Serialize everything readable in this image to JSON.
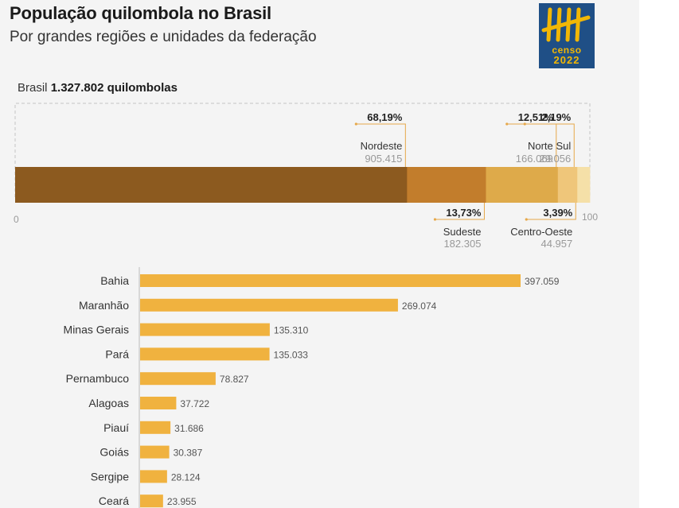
{
  "header": {
    "title": "População quilombola no Brasil",
    "subtitle": "Por grandes regiões e unidades da federação"
  },
  "logo": {
    "line1": "censo",
    "line2": "2022"
  },
  "total": {
    "prefix": "Brasil",
    "value": "1.327.802 quilombolas"
  },
  "colors": {
    "nordeste": "#8c5a1f",
    "sudeste": "#c27d2c",
    "norte": "#deaa4a",
    "centro_oeste": "#efc67a",
    "sul": "#f5e0a8",
    "states_bar": "#f0b23f",
    "leader": "#e6a84a"
  },
  "chart_data": [
    {
      "type": "bar",
      "orientation": "horizontal-stacked",
      "axis": {
        "min": 0,
        "max": 100,
        "min_label": "0",
        "max_label": "100"
      },
      "series": [
        {
          "name": "Nordeste",
          "percent": 68.19,
          "percent_label": "68,19%",
          "count_label": "905.415",
          "label_side": "top"
        },
        {
          "name": "Sudeste",
          "percent": 13.73,
          "percent_label": "13,73%",
          "count_label": "182.305",
          "label_side": "bottom"
        },
        {
          "name": "Norte",
          "percent": 12.51,
          "percent_label": "12,51%",
          "count_label": "166.069",
          "label_side": "top"
        },
        {
          "name": "Centro-Oeste",
          "percent": 3.39,
          "percent_label": "3,39%",
          "count_label": "44.957",
          "label_side": "bottom"
        },
        {
          "name": "Sul",
          "percent": 2.19,
          "percent_label": "2,19%",
          "count_label": "29.056",
          "label_side": "top"
        }
      ]
    },
    {
      "type": "bar",
      "orientation": "horizontal",
      "categories": [
        "Bahia",
        "Maranhão",
        "Minas Gerais",
        "Pará",
        "Pernambuco",
        "Alagoas",
        "Piauí",
        "Goiás",
        "Sergipe",
        "Ceará"
      ],
      "values": [
        397059,
        269074,
        135310,
        135033,
        78827,
        37722,
        31686,
        30387,
        28124,
        23955
      ],
      "value_labels": [
        "397.059",
        "269.074",
        "135.310",
        "135.033",
        "78.827",
        "37.722",
        "31.686",
        "30.387",
        "28.124",
        "23.955"
      ]
    }
  ]
}
